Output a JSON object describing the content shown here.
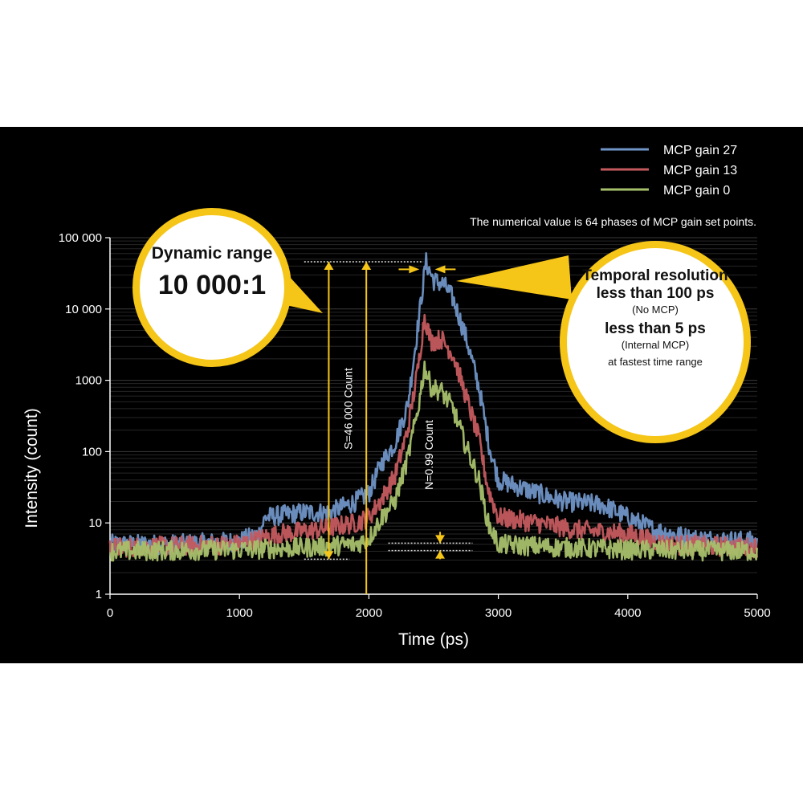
{
  "chart_data": {
    "type": "line",
    "xlabel": "Time (ps)",
    "ylabel": "Intensity (count)",
    "xlim": [
      0,
      5000
    ],
    "ylim": [
      1,
      100000
    ],
    "y_scale": "log",
    "x_ticks": [
      "0",
      "1000",
      "2000",
      "3000",
      "4000",
      "5000"
    ],
    "y_ticks": [
      "1",
      "10",
      "100",
      "1000",
      "10 000",
      "100 000"
    ],
    "grid": "horizontal",
    "legend_position": "top-right",
    "note": "The numerical value is 64 phases of MCP gain set points.",
    "series": [
      {
        "name": "MCP gain 27",
        "color": "#6f94c6",
        "points": [
          [
            0,
            5
          ],
          [
            500,
            5
          ],
          [
            1000,
            5.5
          ],
          [
            1150,
            7
          ],
          [
            1200,
            12
          ],
          [
            1500,
            14
          ],
          [
            1700,
            14
          ],
          [
            1900,
            20
          ],
          [
            2000,
            26
          ],
          [
            2100,
            70
          ],
          [
            2200,
            130
          ],
          [
            2300,
            450
          ],
          [
            2380,
            6000
          ],
          [
            2440,
            46000
          ],
          [
            2500,
            25000
          ],
          [
            2580,
            22000
          ],
          [
            2650,
            14000
          ],
          [
            2750,
            4000
          ],
          [
            2850,
            800
          ],
          [
            2930,
            120
          ],
          [
            3000,
            40
          ],
          [
            3200,
            30
          ],
          [
            3500,
            20
          ],
          [
            3800,
            18
          ],
          [
            4000,
            12
          ],
          [
            4200,
            8
          ],
          [
            4500,
            6
          ],
          [
            5000,
            5.5
          ]
        ]
      },
      {
        "name": "MCP gain 13",
        "color": "#c45a5e",
        "points": [
          [
            0,
            4.5
          ],
          [
            1000,
            5
          ],
          [
            1300,
            7
          ],
          [
            1600,
            8
          ],
          [
            1900,
            10
          ],
          [
            2000,
            12
          ],
          [
            2100,
            22
          ],
          [
            2200,
            45
          ],
          [
            2300,
            200
          ],
          [
            2380,
            1500
          ],
          [
            2430,
            8000
          ],
          [
            2480,
            3500
          ],
          [
            2560,
            3800
          ],
          [
            2650,
            2300
          ],
          [
            2750,
            600
          ],
          [
            2850,
            150
          ],
          [
            2920,
            30
          ],
          [
            3000,
            12
          ],
          [
            3300,
            10
          ],
          [
            3600,
            8
          ],
          [
            4000,
            7
          ],
          [
            4300,
            5
          ],
          [
            5000,
            4.5
          ]
        ]
      },
      {
        "name": "MCP gain 0",
        "color": "#a6c06a",
        "points": [
          [
            0,
            4
          ],
          [
            1000,
            4.2
          ],
          [
            1500,
            4.5
          ],
          [
            1900,
            5
          ],
          [
            2000,
            6
          ],
          [
            2100,
            12
          ],
          [
            2200,
            20
          ],
          [
            2300,
            80
          ],
          [
            2380,
            400
          ],
          [
            2430,
            1550
          ],
          [
            2480,
            800
          ],
          [
            2560,
            700
          ],
          [
            2650,
            400
          ],
          [
            2750,
            120
          ],
          [
            2850,
            40
          ],
          [
            2920,
            10
          ],
          [
            3000,
            5
          ],
          [
            3500,
            4.5
          ],
          [
            4000,
            4.2
          ],
          [
            5000,
            4
          ]
        ]
      }
    ],
    "annotations": {
      "signal_label": "S=46 000 Count",
      "noise_label": "N=0.99 Count"
    }
  },
  "bubbles": {
    "dynamic_range": {
      "title": "Dynamic range",
      "value": "10 000:1"
    },
    "temporal": {
      "line1": "Temporal resolution less than 100 ps",
      "line2": "(No MCP)",
      "line3": "less than 5 ps",
      "line4": "(Internal MCP)",
      "line5": "at fastest time range"
    }
  },
  "colors": {
    "background": "#000000",
    "accent": "#f5c518",
    "grid": "#333333"
  }
}
